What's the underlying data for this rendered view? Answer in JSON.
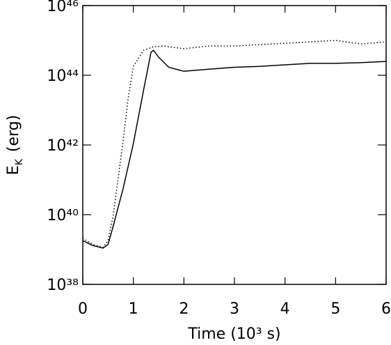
{
  "chart_data": {
    "type": "line",
    "x_label": "Time (10³ s)",
    "y_label": "E",
    "y_label_sub": "K",
    "y_label_unit": "(erg)",
    "log_y": true,
    "xlim": [
      0,
      6
    ],
    "xticks": [
      0,
      1,
      2,
      3,
      4,
      5,
      6
    ],
    "ylim": [
      1e+38,
      1e+46
    ],
    "yticks": [
      {
        "value": 1e+38,
        "label": "10³⁸"
      },
      {
        "value": 1e+40,
        "label": "10⁴⁰"
      },
      {
        "value": 1e+42,
        "label": "10⁴²"
      },
      {
        "value": 1e+44,
        "label": "10⁴⁴"
      },
      {
        "value": 1e+46,
        "label": "10⁴⁶"
      }
    ],
    "series": [
      {
        "color": "#000000",
        "style": "solid",
        "x": [
          0,
          0.2,
          0.4,
          0.5,
          0.6,
          0.8,
          1.0,
          1.2,
          1.35,
          1.4,
          1.5,
          1.7,
          2.0,
          2.5,
          3.0,
          3.5,
          4.0,
          4.5,
          5.0,
          5.5,
          6.0
        ],
        "values": [
          1.8e+39,
          1.3e+39,
          1.1e+39,
          1.4e+39,
          4.6e+39,
          5.8e+40,
          1.1e+42,
          3.6e+43,
          4.6e+44,
          5.2e+44,
          3.3e+44,
          1.7e+44,
          1.3e+44,
          1.5e+44,
          1.7e+44,
          1.8e+44,
          2e+44,
          2.2e+44,
          2.2e+44,
          2.3e+44,
          2.5e+44
        ]
      },
      {
        "color": "#000000",
        "style": "dotted",
        "x": [
          0,
          0.2,
          0.4,
          0.5,
          0.6,
          0.8,
          0.9,
          1.0,
          1.2,
          1.4,
          1.6,
          1.8,
          2.0,
          2.5,
          3.0,
          3.5,
          4.0,
          4.5,
          5.0,
          5.5,
          6.0
        ],
        "values": [
          2.1e+39,
          1.4e+39,
          1.15e+39,
          1.8e+39,
          9.1e+39,
          1.4e+42,
          2.3e+43,
          1.8e+44,
          5.2e+44,
          6.6e+44,
          6.9e+44,
          6.3e+44,
          5.8e+44,
          6.9e+44,
          6.9e+44,
          7.6e+44,
          8.3e+44,
          9.1e+44,
          1e+45,
          7.9e+44,
          9.1e+44
        ]
      }
    ]
  }
}
